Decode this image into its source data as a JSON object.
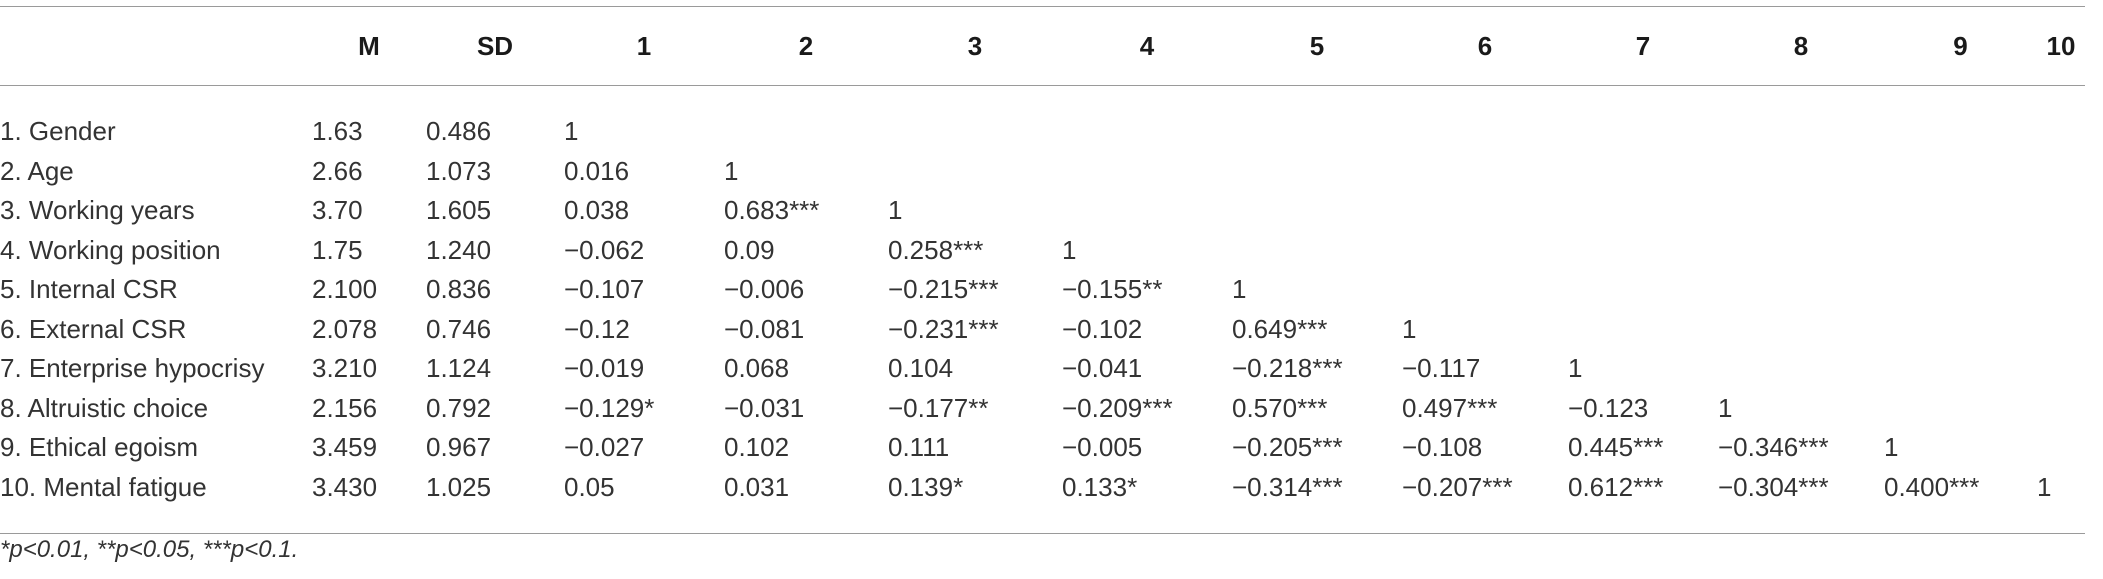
{
  "table": {
    "headers": [
      "",
      "M",
      "SD",
      "1",
      "2",
      "3",
      "4",
      "5",
      "6",
      "7",
      "8",
      "9",
      "10"
    ],
    "rows": [
      [
        "1. Gender",
        "1.63",
        "0.486",
        "1",
        "",
        "",
        "",
        "",
        "",
        "",
        "",
        "",
        ""
      ],
      [
        "2. Age",
        "2.66",
        "1.073",
        "0.016",
        "1",
        "",
        "",
        "",
        "",
        "",
        "",
        "",
        ""
      ],
      [
        "3. Working years",
        "3.70",
        "1.605",
        "0.038",
        "0.683***",
        "1",
        "",
        "",
        "",
        "",
        "",
        "",
        ""
      ],
      [
        "4. Working position",
        "1.75",
        "1.240",
        "−0.062",
        "0.09",
        "0.258***",
        "1",
        "",
        "",
        "",
        "",
        "",
        ""
      ],
      [
        "5. Internal CSR",
        "2.100",
        "0.836",
        "−0.107",
        "−0.006",
        "−0.215***",
        "−0.155**",
        "1",
        "",
        "",
        "",
        "",
        ""
      ],
      [
        "6. External CSR",
        "2.078",
        "0.746",
        "−0.12",
        "−0.081",
        "−0.231***",
        "−0.102",
        "0.649***",
        "1",
        "",
        "",
        "",
        ""
      ],
      [
        "7. Enterprise hypocrisy",
        "3.210",
        "1.124",
        "−0.019",
        "0.068",
        "0.104",
        "−0.041",
        "−0.218***",
        "−0.117",
        "1",
        "",
        "",
        ""
      ],
      [
        "8. Altruistic choice",
        "2.156",
        "0.792",
        "−0.129*",
        "−0.031",
        "−0.177**",
        "−0.209***",
        "0.570***",
        "0.497***",
        "−0.123",
        "1",
        "",
        ""
      ],
      [
        "9. Ethical egoism",
        "3.459",
        "0.967",
        "−0.027",
        "0.102",
        "0.111",
        "−0.005",
        "−0.205***",
        "−0.108",
        "0.445***",
        "−0.346***",
        "1",
        ""
      ],
      [
        "10. Mental fatigue",
        "3.430",
        "1.025",
        "0.05",
        "0.031",
        "0.139*",
        "0.133*",
        "−0.314***",
        "−0.207***",
        "0.612***",
        "−0.304***",
        "0.400***",
        "1"
      ]
    ]
  },
  "footnote": "*p<0.01, **p<0.05, ***p<0.1."
}
